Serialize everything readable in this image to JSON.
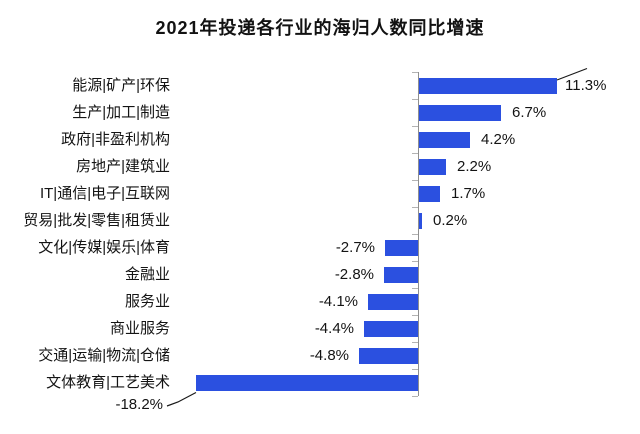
{
  "page": {
    "background": "#ffffff"
  },
  "chart_data": {
    "type": "bar",
    "orientation": "horizontal",
    "title": "2021年投递各行业的海归人数同比增速",
    "unit": "%",
    "xlabel": "",
    "ylabel": "",
    "xlim": [
      -20,
      13
    ],
    "grid": false,
    "legend": false,
    "bar_color": "#2b50e0",
    "axis_color": "#8f8f8f",
    "tick_color": "#b3b3b3",
    "text_color": "#141414",
    "categories": [
      "能源|矿产|环保",
      "生产|加工|制造",
      "政府|非盈利机构",
      "房地产|建筑业",
      "IT|通信|电子|互联网",
      "贸易|批发|零售|租赁业",
      "文化|传媒|娱乐|体育",
      "金融业",
      "服务业",
      "商业服务",
      "交通|运输|物流|仓储",
      "文体教育|工艺美术"
    ],
    "values": [
      11.3,
      6.7,
      4.2,
      2.2,
      1.7,
      0.2,
      -2.7,
      -2.8,
      -4.1,
      -4.4,
      -4.8,
      -18.2
    ],
    "value_labels": [
      "11.3%",
      "6.7%",
      "4.2%",
      "2.2%",
      "1.7%",
      "0.2%",
      "-2.7%",
      "-2.8%",
      "-4.1%",
      "-4.4%",
      "-4.8%",
      "-18.2%"
    ],
    "rows": [
      {
        "label": "能源|矿产|环保",
        "value": 11.3,
        "display": "11.3%",
        "placement": "right-callout"
      },
      {
        "label": "生产|加工|制造",
        "value": 6.7,
        "display": "6.7%",
        "placement": "right"
      },
      {
        "label": "政府|非盈利机构",
        "value": 4.2,
        "display": "4.2%",
        "placement": "right"
      },
      {
        "label": "房地产|建筑业",
        "value": 2.2,
        "display": "2.2%",
        "placement": "right"
      },
      {
        "label": "IT|通信|电子|互联网",
        "value": 1.7,
        "display": "1.7%",
        "placement": "right"
      },
      {
        "label": "贸易|批发|零售|租赁业",
        "value": 0.2,
        "display": "0.2%",
        "placement": "right"
      },
      {
        "label": "文化|传媒|娱乐|体育",
        "value": -2.7,
        "display": "-2.7%",
        "placement": "left"
      },
      {
        "label": "金融业",
        "value": -2.8,
        "display": "-2.8%",
        "placement": "left"
      },
      {
        "label": "服务业",
        "value": -4.1,
        "display": "-4.1%",
        "placement": "left"
      },
      {
        "label": "商业服务",
        "value": -4.4,
        "display": "-4.4%",
        "placement": "left"
      },
      {
        "label": "交通|运输|物流|仓储",
        "value": -4.8,
        "display": "-4.8%",
        "placement": "left"
      },
      {
        "label": "文体教育|工艺美术",
        "value": -18.2,
        "display": "-18.2%",
        "placement": "below-callout"
      }
    ]
  }
}
